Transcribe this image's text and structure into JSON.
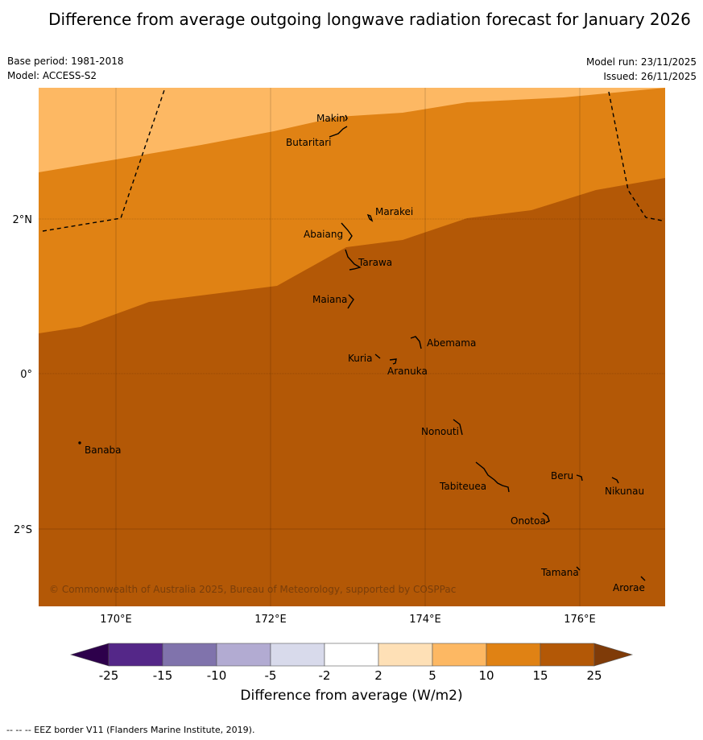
{
  "title": "Difference from average outgoing longwave radiation forecast for January 2026",
  "header": {
    "base_period": "Base period: 1981-2018",
    "model": "Model: ACCESS-S2",
    "model_run": "Model run: 23/11/2025",
    "issued": "Issued: 26/11/2025"
  },
  "map": {
    "lon_labels": [
      "170°E",
      "172°E",
      "174°E",
      "176°E"
    ],
    "lat_labels": [
      "2°N",
      "0°",
      "2°S"
    ],
    "islands": [
      "Makin",
      "Butaritari",
      "Marakei",
      "Abaiang",
      "Tarawa",
      "Maiana",
      "Abemama",
      "Kuria",
      "Aranuka",
      "Nonouti",
      "Banaba",
      "Beru",
      "Nikunau",
      "Tabiteuea",
      "Onotoa",
      "Tamana",
      "Arorae"
    ],
    "shading_categories": [
      "5 to 10",
      "10 to 15",
      "15 to 25"
    ],
    "copyright": "© Commonwealth of Australia 2025, Bureau of Meteorology, supported by COSPPac"
  },
  "colorbar": {
    "ticks": [
      "-25",
      "-15",
      "-10",
      "-5",
      "-2",
      "2",
      "5",
      "10",
      "15",
      "25"
    ],
    "colors": [
      "#542788",
      "#8073ac",
      "#b2abd2",
      "#d8daeb",
      "#ffffff",
      "#fee0b6",
      "#fdb863",
      "#e08214",
      "#b35806"
    ],
    "under_color": "#2d004b",
    "over_color": "#7f3b08",
    "label": "Difference from average (W/m2)"
  },
  "footnote": "--  --  -- EEZ border V11 (Flanders Marine Institute, 2019)."
}
